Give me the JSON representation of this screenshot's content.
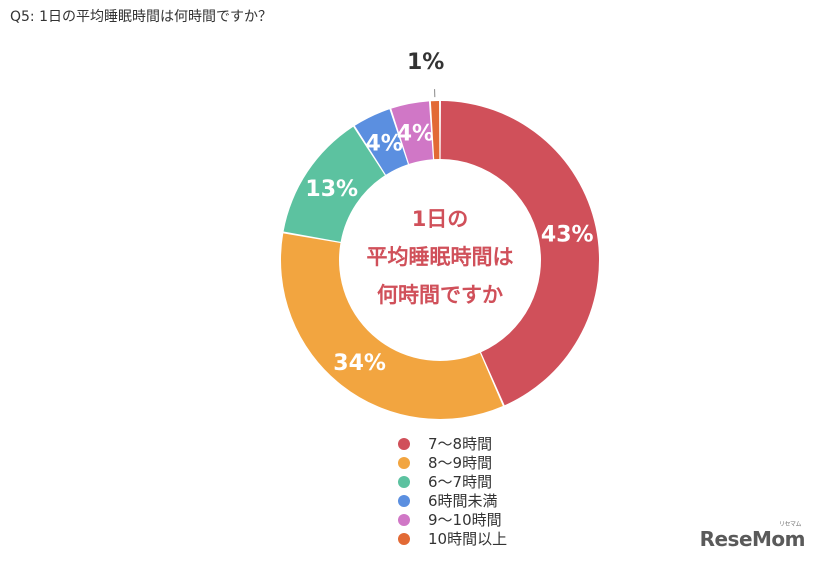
{
  "question": "Q5: 1日の平均睡眠時間は何時間ですか？",
  "center_lines": [
    "1日の",
    "平均睡眠時間は",
    "何時間ですか"
  ],
  "logo": {
    "text": "ReseMom",
    "sup": "リセマム"
  },
  "chart_data": {
    "type": "pie",
    "donut": true,
    "title": "",
    "categories": [
      "7〜8時間",
      "8〜9時間",
      "6〜7時間",
      "6時間未満",
      "9〜10時間",
      "10時間以上"
    ],
    "values": [
      43,
      34,
      13,
      4,
      4,
      1
    ],
    "labels": [
      "43%",
      "34%",
      "13%",
      "4%",
      "4%",
      "1%"
    ],
    "colors": [
      "#d0505a",
      "#f2a540",
      "#5cc2a0",
      "#5b8fe0",
      "#d077c6",
      "#e26a35"
    ],
    "legend_position": "bottom"
  }
}
